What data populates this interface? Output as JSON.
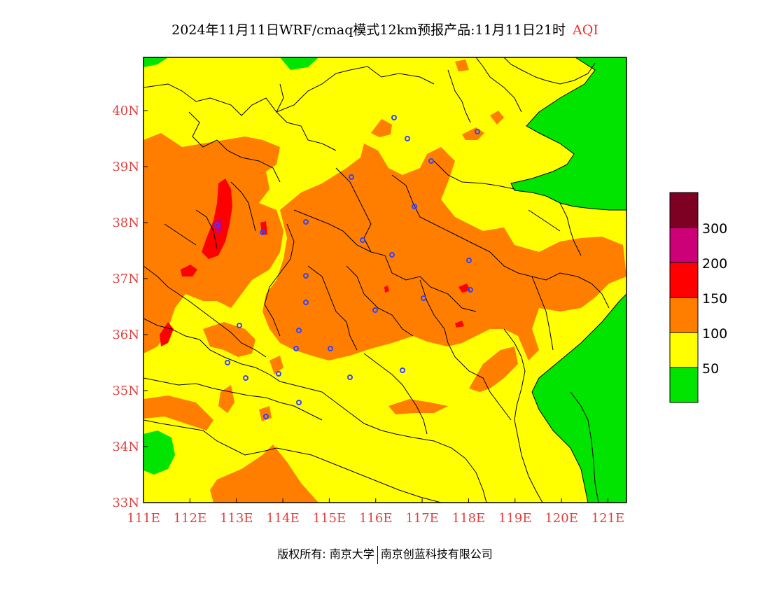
{
  "title": {
    "text": "2024年11月11日WRF/cmaq模式12km预报产品:11月11日21时",
    "product": "AQI"
  },
  "map": {
    "lon_range": [
      111,
      121.4
    ],
    "lat_range": [
      33,
      40.95
    ],
    "x_ticks": [
      "111E",
      "112E",
      "113E",
      "114E",
      "115E",
      "116E",
      "117E",
      "118E",
      "119E",
      "120E",
      "121E"
    ],
    "y_ticks": [
      "33N",
      "34N",
      "35N",
      "36N",
      "37N",
      "38N",
      "39N",
      "40N"
    ],
    "colors": {
      "good": "#00e400",
      "moderate": "#ffff00",
      "usg": "#ff7e00",
      "unhealthy": "#ff0000",
      "very_unhealthy": "#cc0077",
      "hazardous": "#7e0023",
      "stations": "#3344ff",
      "borders": "#000000"
    }
  },
  "legend": {
    "labels": [
      "50",
      "100",
      "150",
      "200",
      "300"
    ]
  },
  "footer": {
    "copyright": "版权所有: 南京大学",
    "company": "南京创蓝科技有限公司"
  }
}
